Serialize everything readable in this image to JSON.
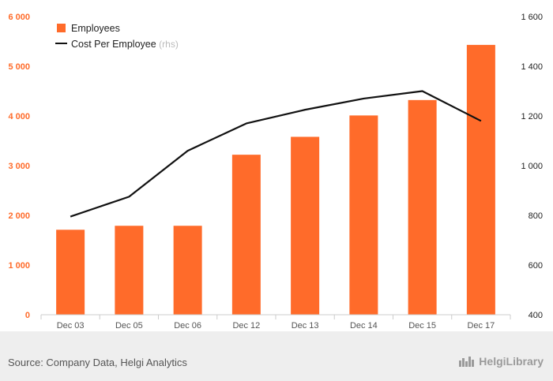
{
  "chart_data": {
    "type": "bar+line",
    "categories": [
      "Dec 03",
      "Dec 05",
      "Dec 06",
      "Dec 12",
      "Dec 13",
      "Dec 14",
      "Dec 15",
      "Dec 17"
    ],
    "series": [
      {
        "name": "Employees",
        "type": "bar",
        "axis": "left",
        "color": "#ff6b2a",
        "values": [
          1710,
          1790,
          1790,
          3220,
          3580,
          4010,
          4320,
          5430
        ]
      },
      {
        "name": "Cost Per Employee",
        "note": "(rhs)",
        "type": "line",
        "axis": "right",
        "color": "#111111",
        "values": [
          795,
          875,
          1060,
          1170,
          1225,
          1270,
          1300,
          1180
        ]
      }
    ],
    "left_axis": {
      "ylim": [
        0,
        6000
      ],
      "ticks": [
        0,
        1000,
        2000,
        3000,
        4000,
        5000,
        6000
      ],
      "tick_labels": [
        "0",
        "1 000",
        "2 000",
        "3 000",
        "4 000",
        "5 000",
        "6 000"
      ]
    },
    "right_axis": {
      "ylim": [
        400,
        1600
      ],
      "ticks": [
        400,
        600,
        800,
        1000,
        1200,
        1400,
        1600
      ],
      "tick_labels": [
        "400",
        "600",
        "800",
        "1 000",
        "1 200",
        "1 400",
        "1 600"
      ]
    },
    "grid": false,
    "legend_position": "top-left"
  },
  "footer": {
    "source": "Source: Company Data, Helgi Analytics",
    "brand": "HelgiLibrary"
  },
  "icons": {
    "brand": "city-skyline-icon"
  }
}
